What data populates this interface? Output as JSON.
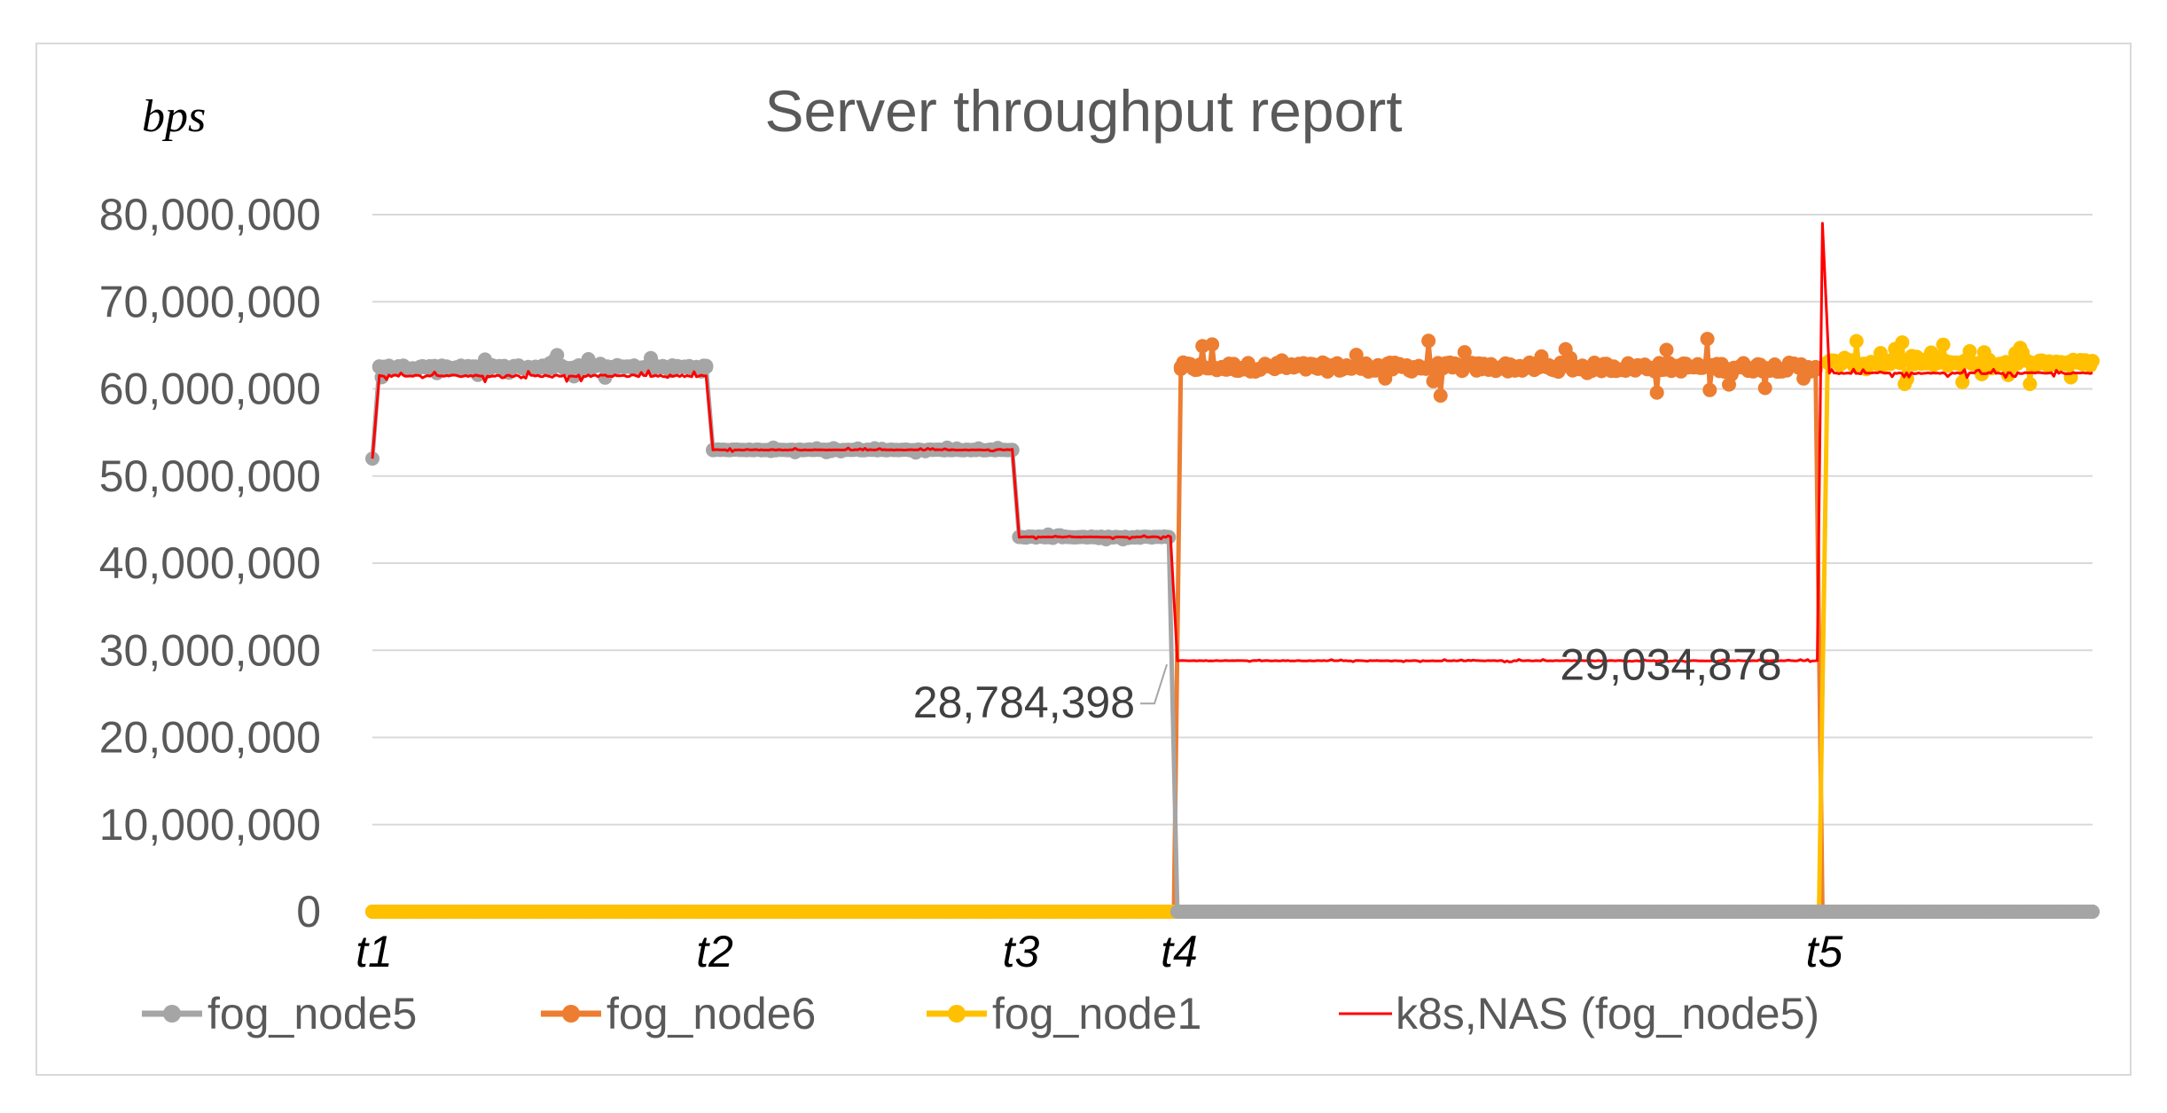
{
  "chart_data": {
    "type": "line",
    "title": "Server throughput report",
    "ylabel": "bps",
    "xlabel": "",
    "ylim": [
      0,
      80000000
    ],
    "yticks": [
      0,
      10000000,
      20000000,
      30000000,
      40000000,
      50000000,
      60000000,
      70000000,
      80000000
    ],
    "ytick_labels": [
      "0",
      "10,000,000",
      "20,000,000",
      "30,000,000",
      "40,000,000",
      "50,000,000",
      "60,000,000",
      "70,000,000",
      "80,000,000"
    ],
    "x_range": [
      0,
      100
    ],
    "x_markers": [
      {
        "label": "t1",
        "x": 0
      },
      {
        "label": "t2",
        "x": 19.8
      },
      {
        "label": "t3",
        "x": 37.6
      },
      {
        "label": "t4",
        "x": 46.8
      },
      {
        "label": "t5",
        "x": 84.3
      }
    ],
    "grid": true,
    "legend_position": "bottom",
    "series": [
      {
        "name": "fog_node5",
        "color": "#a5a5a5",
        "marker": "circle",
        "segments": [
          {
            "x_start": 0,
            "x_end": 0.4,
            "y_start": 52000000,
            "y_end": 62500000
          },
          {
            "x_start": 0.4,
            "x_end": 19.4,
            "y": 62500000,
            "jitter": 1500000
          },
          {
            "x_start": 19.4,
            "x_end": 19.8,
            "y_start": 62500000,
            "y_end": 53000000
          },
          {
            "x_start": 19.8,
            "x_end": 37.2,
            "y": 53000000,
            "jitter": 300000
          },
          {
            "x_start": 37.2,
            "x_end": 37.6,
            "y_start": 53000000,
            "y_end": 43000000
          },
          {
            "x_start": 37.6,
            "x_end": 46.3,
            "y": 43000000,
            "jitter": 400000
          },
          {
            "x_start": 46.3,
            "x_end": 46.8,
            "y_start": 43000000,
            "y_end": 0
          },
          {
            "x_start": 46.8,
            "x_end": 100,
            "y": 0
          }
        ]
      },
      {
        "name": "fog_node6",
        "color": "#ed7d31",
        "marker": "circle",
        "segments": [
          {
            "x_start": 0,
            "x_end": 46.6,
            "y": 0
          },
          {
            "x_start": 46.6,
            "x_end": 47.0,
            "y_start": 0,
            "y_end": 62500000
          },
          {
            "x_start": 47.0,
            "x_end": 83.9,
            "y": 62500000,
            "jitter": 3500000
          },
          {
            "x_start": 83.9,
            "x_end": 84.3,
            "y_start": 62500000,
            "y_end": 0
          },
          {
            "x_start": 84.3,
            "x_end": 100,
            "y": 0
          }
        ]
      },
      {
        "name": "fog_node1",
        "color": "#ffc000",
        "marker": "circle",
        "segments": [
          {
            "x_start": 0,
            "x_end": 84.1,
            "y": 0
          },
          {
            "x_start": 84.1,
            "x_end": 84.6,
            "y_start": 0,
            "y_end": 63000000
          },
          {
            "x_start": 84.6,
            "x_end": 100,
            "y": 63000000,
            "jitter": 2500000
          }
        ]
      },
      {
        "name": "k8s,NAS (fog_node5)",
        "color": "#ff0000",
        "marker": "none",
        "segments": [
          {
            "x_start": 0,
            "x_end": 0.4,
            "y_start": 52000000,
            "y_end": 61500000
          },
          {
            "x_start": 0.4,
            "x_end": 19.4,
            "y": 61500000,
            "jitter": 700000
          },
          {
            "x_start": 19.4,
            "x_end": 19.8,
            "y_start": 61500000,
            "y_end": 53000000
          },
          {
            "x_start": 19.8,
            "x_end": 37.2,
            "y": 53000000,
            "jitter": 250000
          },
          {
            "x_start": 37.2,
            "x_end": 37.6,
            "y_start": 53000000,
            "y_end": 43000000
          },
          {
            "x_start": 37.6,
            "x_end": 46.4,
            "y": 43000000,
            "jitter": 250000
          },
          {
            "x_start": 46.4,
            "x_end": 46.8,
            "y_start": 43000000,
            "y_end": 28784398
          },
          {
            "x_start": 46.8,
            "x_end": 84.0,
            "y": 28800000,
            "jitter": 150000
          },
          {
            "x_start": 84.0,
            "x_end": 84.3,
            "y_start": 29034878,
            "y_end": 79000000
          },
          {
            "x_start": 84.3,
            "x_end": 84.7,
            "y_start": 79000000,
            "y_end": 61800000
          },
          {
            "x_start": 84.7,
            "x_end": 100,
            "y": 61800000,
            "jitter": 500000
          }
        ]
      }
    ],
    "annotations": [
      {
        "text": "28,784,398",
        "x": 46.6,
        "y": 28784398
      },
      {
        "text": "29,034,878",
        "x": 84.0,
        "y": 29034878
      }
    ]
  }
}
